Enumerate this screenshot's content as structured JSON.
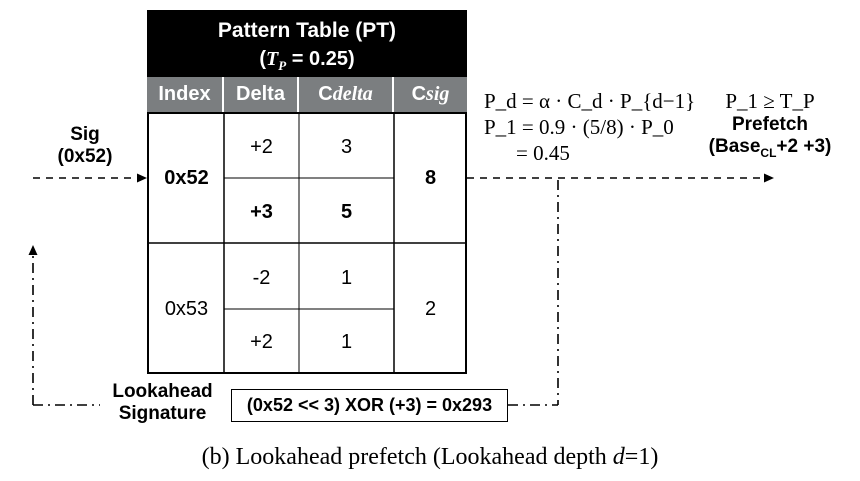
{
  "table": {
    "title": "Pattern Table (PT)",
    "threshold_prefix": "T",
    "threshold_sub": "P",
    "threshold_value": " = 0.25",
    "headers": {
      "index": "Index",
      "delta": "Delta",
      "cdelta_c": "C",
      "cdelta_rest": "delta",
      "csig_c": "C",
      "csig_rest": "sig"
    },
    "rows": [
      {
        "index": "0x52",
        "csig": "8",
        "entries": [
          {
            "delta": "+2",
            "cdelta": "3"
          },
          {
            "delta": "+3",
            "cdelta": "5"
          }
        ]
      },
      {
        "index": "0x53",
        "csig": "2",
        "entries": [
          {
            "delta": "-2",
            "cdelta": "1"
          },
          {
            "delta": "+2",
            "cdelta": "1"
          }
        ]
      }
    ]
  },
  "sig_label": {
    "line1": "Sig",
    "line2": "(0x52)"
  },
  "formulas": {
    "line1": "P_d = α · C_d · P_{d−1}",
    "line2": "P_1 = 0.9 · (5/8) · P_0",
    "line3": "= 0.45"
  },
  "prefetch": {
    "condition": "P_1 ≥ T_P",
    "label": "Prefetch",
    "base_prefix": "(Base",
    "base_sub": "CL",
    "base_suffix": "+2 +3)"
  },
  "lookahead": {
    "line1": "Lookahead",
    "line2": "Signature"
  },
  "xor_expression": "(0x52 << 3) XOR (+3) = 0x293",
  "caption": {
    "prefix": "(b) Lookahead prefetch (Lookahead depth ",
    "var": "d",
    "suffix": "=1)"
  }
}
